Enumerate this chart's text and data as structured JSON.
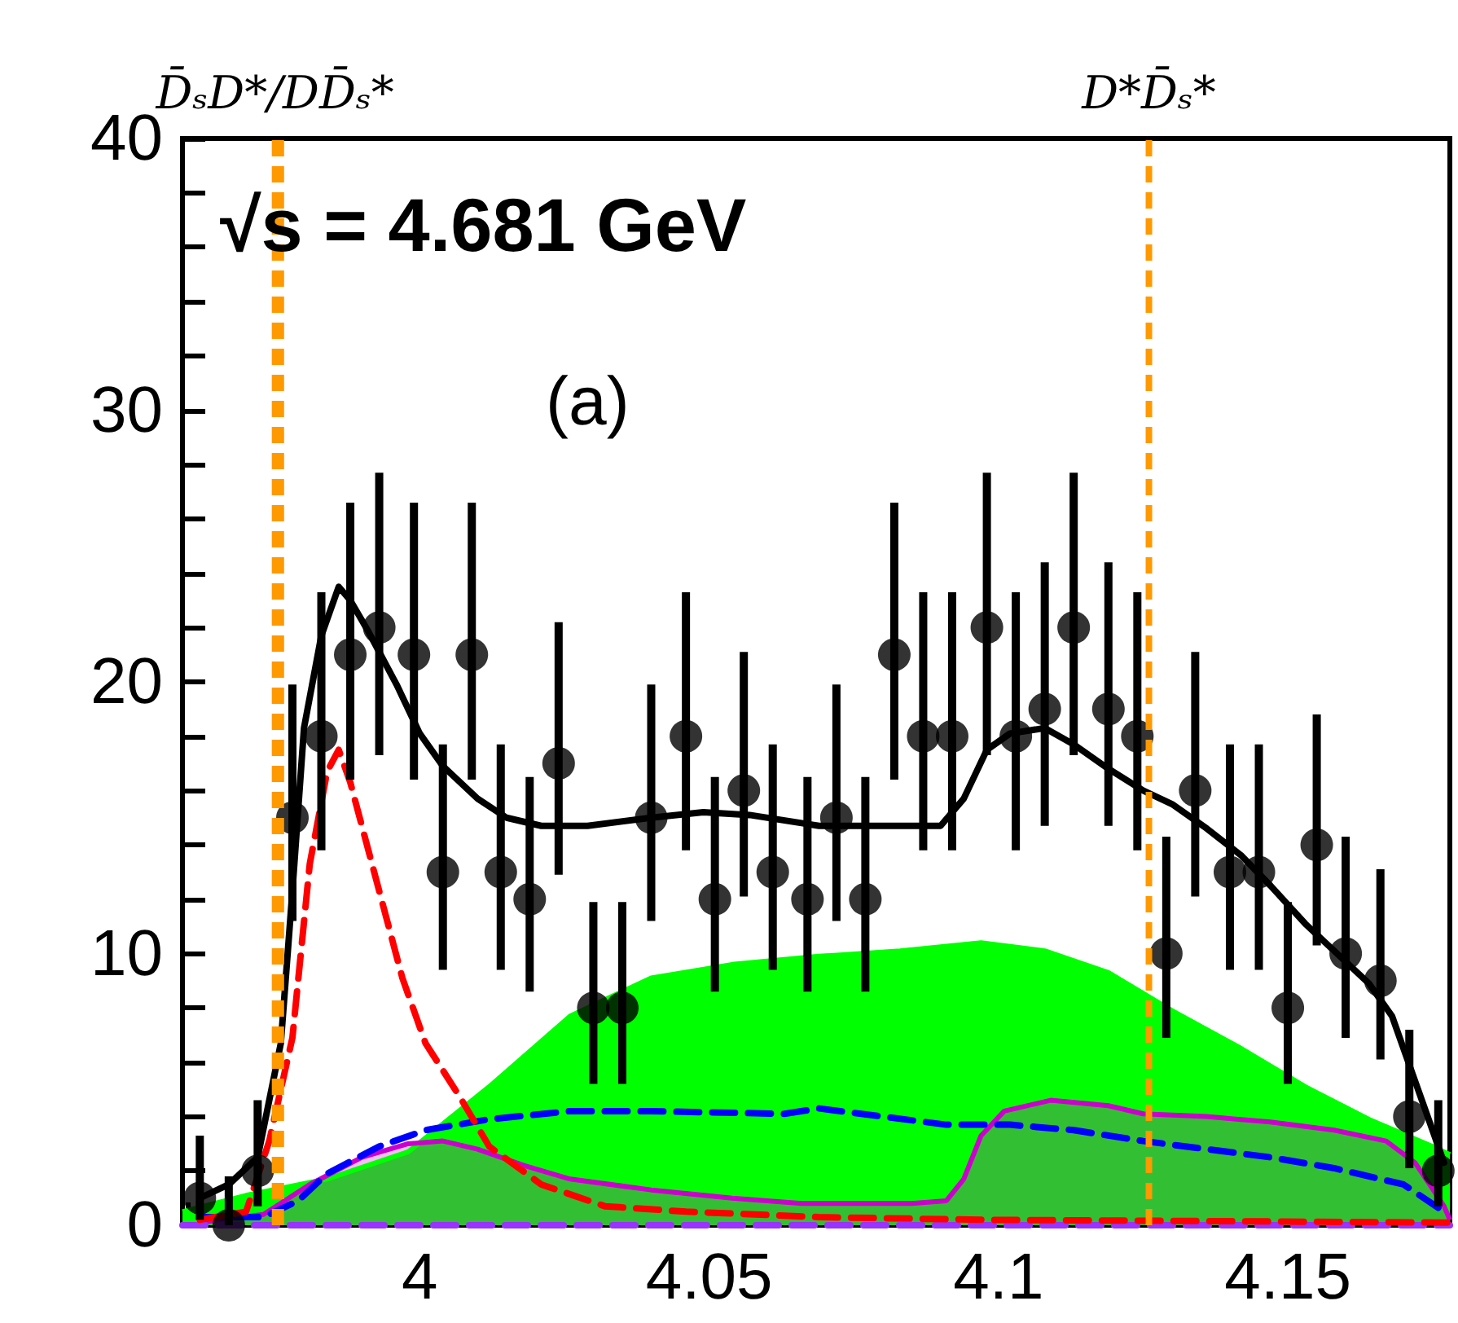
{
  "chart_data": {
    "type": "scatter",
    "annotations": [
      "√s = 4.681 GeV",
      "(a)"
    ],
    "xlim": [
      3.959,
      4.178
    ],
    "xticks": [
      {
        "value": 3.96,
        "label": null
      },
      {
        "value": 3.97,
        "label": null
      },
      {
        "value": 3.98,
        "label": null
      },
      {
        "value": 3.99,
        "label": null
      },
      4,
      {
        "value": 4.01,
        "label": null
      },
      {
        "value": 4.02,
        "label": null
      },
      {
        "value": 4.03,
        "label": null
      },
      {
        "value": 4.04,
        "label": null
      },
      4.05,
      {
        "value": 4.06,
        "label": null
      },
      {
        "value": 4.07,
        "label": null
      },
      {
        "value": 4.08,
        "label": null
      },
      {
        "value": 4.09,
        "label": null
      },
      4.1,
      {
        "value": 4.11,
        "label": null
      },
      {
        "value": 4.12,
        "label": null
      },
      {
        "value": 4.13,
        "label": null
      },
      {
        "value": 4.14,
        "label": null
      },
      4.15,
      {
        "value": 4.16,
        "label": null
      },
      {
        "value": 4.17,
        "label": null
      }
    ],
    "ylim": [
      0,
      40
    ],
    "yticks": [
      0,
      {
        "value": 2,
        "label": null
      },
      {
        "value": 4,
        "label": null
      },
      {
        "value": 6,
        "label": null
      },
      {
        "value": 8,
        "label": null
      },
      10,
      {
        "value": 12,
        "label": null
      },
      {
        "value": 14,
        "label": null
      },
      {
        "value": 16,
        "label": null
      },
      {
        "value": 18,
        "label": null
      },
      20,
      {
        "value": 22,
        "label": null
      },
      {
        "value": 24,
        "label": null
      },
      {
        "value": 26,
        "label": null
      },
      {
        "value": 28,
        "label": null
      },
      30,
      {
        "value": 32,
        "label": null
      },
      {
        "value": 34,
        "label": null
      },
      {
        "value": 36,
        "label": null
      },
      {
        "value": 38,
        "label": null
      },
      40
    ],
    "ref_lines": [
      {
        "axis": "x",
        "value": 3.975,
        "label": "D̄ₛD*/DD̄ₛ*",
        "color": "#ff9900",
        "line_style": "dashed"
      },
      {
        "axis": "x",
        "value": 3.976,
        "color": "#ff9900",
        "line_style": "dashed"
      },
      {
        "axis": "x",
        "value": 4.126,
        "label": "D*D̄ₛ*",
        "color": "#ff9900",
        "line_style": "dashed"
      }
    ],
    "series": [
      {
        "type": "area",
        "color": "#00ff00",
        "x": [
          3.959,
          3.97,
          3.984,
          3.998,
          4.012,
          4.026,
          4.04,
          4.054,
          4.069,
          4.083,
          4.097,
          4.108,
          4.119,
          4.13,
          4.142,
          4.153,
          4.164,
          4.175,
          4.178
        ],
        "values": [
          0.5,
          1.1,
          1.7,
          2.7,
          5.1,
          7.7,
          9.1,
          9.6,
          9.9,
          10.1,
          10.4,
          10.1,
          9.3,
          7.9,
          6.5,
          5.1,
          3.9,
          2.9,
          2.6
        ]
      },
      {
        "type": "area",
        "color": "#cc00cc",
        "x": [
          3.962,
          3.973,
          3.981,
          3.99,
          3.998,
          4.004,
          4.01,
          4.018,
          4.026,
          4.04,
          4.054,
          4.066,
          4.085,
          4.091,
          4.094,
          4.097,
          4.101,
          4.109,
          4.119,
          4.125,
          4.136,
          4.147,
          4.158,
          4.167,
          4.172,
          4.177,
          4.178
        ],
        "values": [
          0.1,
          0.4,
          1.5,
          2.5,
          3.0,
          3.1,
          2.8,
          2.2,
          1.7,
          1.3,
          1.0,
          0.8,
          0.8,
          0.9,
          1.7,
          3.3,
          4.2,
          4.6,
          4.4,
          4.1,
          4.0,
          3.8,
          3.5,
          3.1,
          2.3,
          0.7,
          0.2
        ]
      },
      {
        "type": "line",
        "color": "#9933ff",
        "line_style": "dashed",
        "x": [
          3.959,
          4.178
        ],
        "values": [
          0,
          0
        ]
      },
      {
        "type": "line",
        "color": "#0000ff",
        "line_style": "dashed",
        "x": [
          3.962,
          3.973,
          3.979,
          3.984,
          3.993,
          4.001,
          4.012,
          4.026,
          4.04,
          4.063,
          4.069,
          4.08,
          4.091,
          4.102,
          4.113,
          4.125,
          4.136,
          4.147,
          4.158,
          4.17,
          4.177
        ],
        "values": [
          0.3,
          0.3,
          0.9,
          1.9,
          2.9,
          3.5,
          3.9,
          4.2,
          4.2,
          4.1,
          4.3,
          4.0,
          3.7,
          3.7,
          3.5,
          3.1,
          2.8,
          2.5,
          2.1,
          1.5,
          0.5
        ]
      },
      {
        "type": "line",
        "color": "#ff0000",
        "line_style": "dashed",
        "x": [
          3.962,
          3.97,
          3.974,
          3.978,
          3.981,
          3.984,
          3.986,
          3.988,
          3.993,
          3.997,
          4.001,
          4.007,
          4.012,
          4.021,
          4.032,
          4.046,
          4.069,
          4.097,
          4.178
        ],
        "values": [
          0.2,
          0.5,
          3.1,
          6.9,
          13.3,
          16.7,
          17.5,
          16.3,
          12.3,
          9.1,
          6.7,
          4.7,
          2.9,
          1.5,
          0.7,
          0.5,
          0.3,
          0.2,
          0.1
        ]
      },
      {
        "type": "line",
        "color": "#000000",
        "line_style": "solid",
        "x": [
          3.962,
          3.967,
          3.972,
          3.976,
          3.978,
          3.98,
          3.983,
          3.986,
          3.988,
          3.991,
          3.996,
          4.0,
          4.004,
          4.01,
          4.015,
          4.021,
          4.029,
          4.04,
          4.049,
          4.057,
          4.066,
          4.069,
          4.08,
          4.09,
          4.094,
          4.098,
          4.102,
          4.108,
          4.113,
          4.119,
          4.125,
          4.13,
          4.136,
          4.142,
          4.147,
          4.153,
          4.158,
          4.164,
          4.168,
          4.172,
          4.177
        ],
        "values": [
          1.0,
          1.5,
          2.5,
          6.7,
          12.3,
          18.3,
          21.7,
          23.5,
          23.0,
          21.9,
          19.9,
          18.1,
          16.9,
          15.7,
          15.0,
          14.7,
          14.7,
          15.0,
          15.2,
          15.1,
          14.8,
          14.7,
          14.7,
          14.7,
          15.7,
          17.5,
          18.1,
          18.3,
          17.7,
          16.8,
          16.0,
          15.5,
          14.6,
          13.6,
          12.5,
          11.1,
          10.1,
          8.9,
          7.7,
          5.3,
          2.3
        ]
      },
      {
        "color": "#000000",
        "marker": "circle",
        "x": [
          3.962,
          3.967,
          3.972,
          3.978,
          3.983,
          3.988,
          3.993,
          3.999,
          4.004,
          4.009,
          4.014,
          4.019,
          4.024,
          4.03,
          4.035,
          4.04,
          4.046,
          4.051,
          4.056,
          4.061,
          4.067,
          4.072,
          4.077,
          4.082,
          4.087,
          4.092,
          4.098,
          4.103,
          4.108,
          4.113,
          4.119,
          4.124,
          4.129,
          4.134,
          4.14,
          4.145,
          4.15,
          4.155,
          4.16,
          4.166,
          4.171,
          4.176
        ],
        "values": [
          1,
          0,
          2,
          15,
          18,
          21,
          22,
          21,
          13,
          21,
          13,
          12,
          17,
          8,
          8,
          15,
          18,
          12,
          16,
          13,
          12,
          15,
          12,
          21,
          18,
          18,
          22,
          18,
          19,
          22,
          19,
          18,
          10,
          16,
          13,
          13,
          8,
          14,
          10,
          9,
          4,
          2
        ],
        "errors": [
          [
            0.2,
            3.3
          ],
          [
            0,
            1.8
          ],
          [
            0.7,
            4.6
          ],
          [
            11.2,
            19.9
          ],
          [
            13.8,
            23.3
          ],
          [
            16.4,
            26.6
          ],
          [
            17.3,
            27.7
          ],
          [
            16.4,
            26.6
          ],
          [
            9.4,
            17.7
          ],
          [
            16.4,
            26.6
          ],
          [
            9.4,
            17.7
          ],
          [
            8.6,
            16.5
          ],
          [
            12.9,
            22.2
          ],
          [
            5.2,
            11.9
          ],
          [
            5.2,
            11.9
          ],
          [
            11.2,
            19.9
          ],
          [
            13.8,
            23.3
          ],
          [
            8.6,
            16.5
          ],
          [
            12.1,
            21.1
          ],
          [
            9.4,
            17.7
          ],
          [
            8.6,
            16.5
          ],
          [
            11.2,
            19.9
          ],
          [
            8.6,
            16.5
          ],
          [
            16.4,
            26.6
          ],
          [
            13.8,
            23.3
          ],
          [
            13.8,
            23.3
          ],
          [
            17.3,
            27.7
          ],
          [
            13.8,
            23.3
          ],
          [
            14.7,
            24.4
          ],
          [
            17.3,
            27.7
          ],
          [
            14.7,
            24.4
          ],
          [
            13.8,
            23.3
          ],
          [
            6.9,
            14.3
          ],
          [
            12.1,
            21.1
          ],
          [
            9.4,
            17.7
          ],
          [
            9.4,
            17.7
          ],
          [
            5.2,
            11.9
          ],
          [
            10.3,
            18.8
          ],
          [
            6.9,
            14.3
          ],
          [
            6.1,
            13.1
          ],
          [
            2.1,
            7.2
          ],
          [
            0.7,
            4.6
          ]
        ]
      }
    ]
  }
}
